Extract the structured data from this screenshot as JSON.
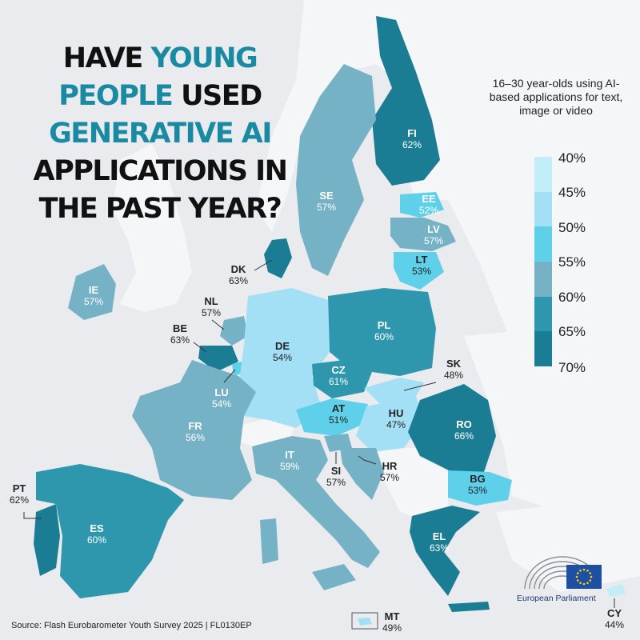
{
  "title_parts": {
    "p1": "HAVE ",
    "p2": "YOUNG PEOPLE",
    "p3": " USED ",
    "p4": "GENERATIVE AI",
    "p5": " APPLICATIONS IN THE PAST YEAR?"
  },
  "subtitle": "16–30 year-olds using AI-based applications for text, image or video",
  "legend": {
    "ticks": [
      "40%",
      "45%",
      "50%",
      "55%",
      "60%",
      "65%",
      "70%"
    ],
    "colors": [
      "#c2eef7",
      "#a3e0f5",
      "#5fd0ea",
      "#76b2c6",
      "#2f97ad",
      "#1b7d94",
      "#15687e"
    ]
  },
  "countries": [
    {
      "code": "FI",
      "value": "62%"
    },
    {
      "code": "SE",
      "value": "57%"
    },
    {
      "code": "EE",
      "value": "52%"
    },
    {
      "code": "LV",
      "value": "57%"
    },
    {
      "code": "LT",
      "value": "53%"
    },
    {
      "code": "DK",
      "value": "63%"
    },
    {
      "code": "IE",
      "value": "57%"
    },
    {
      "code": "NL",
      "value": "57%"
    },
    {
      "code": "BE",
      "value": "63%"
    },
    {
      "code": "DE",
      "value": "54%"
    },
    {
      "code": "PL",
      "value": "60%"
    },
    {
      "code": "CZ",
      "value": "61%"
    },
    {
      "code": "SK",
      "value": "48%"
    },
    {
      "code": "LU",
      "value": "54%"
    },
    {
      "code": "AT",
      "value": "51%"
    },
    {
      "code": "HU",
      "value": "47%"
    },
    {
      "code": "RO",
      "value": "66%"
    },
    {
      "code": "FR",
      "value": "56%"
    },
    {
      "code": "IT",
      "value": "59%"
    },
    {
      "code": "SI",
      "value": "57%"
    },
    {
      "code": "HR",
      "value": "57%"
    },
    {
      "code": "BG",
      "value": "53%"
    },
    {
      "code": "PT",
      "value": "62%"
    },
    {
      "code": "ES",
      "value": "60%"
    },
    {
      "code": "EL",
      "value": "63%"
    },
    {
      "code": "MT",
      "value": "49%"
    },
    {
      "code": "CY",
      "value": "44%"
    }
  ],
  "source": "Source: Flash Eurobarometer Youth Survey 2025 | FL0130EP",
  "logo_text": "European Parliament",
  "logo": {
    "icon": "european-parliament-logo-icon",
    "flag_color": "#1d4fa3",
    "star_color": "#ffd200"
  }
}
